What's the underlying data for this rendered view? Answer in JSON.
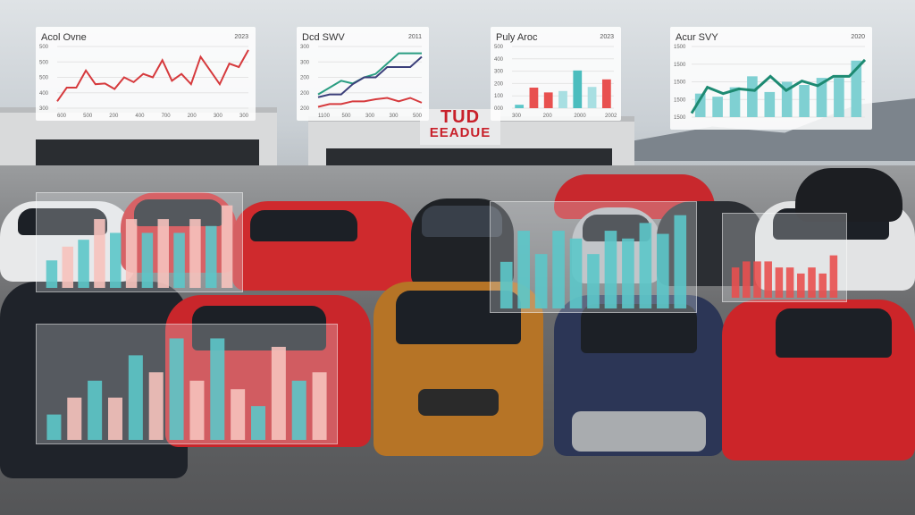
{
  "scene": {
    "sign_line1": "TUD",
    "sign_line2": "EEADUE",
    "colors": {
      "red": "#e8504f",
      "teal": "#5cc7c9",
      "pink": "#f6c2bd",
      "green": "#1d8a72",
      "navy": "#3b3f7a"
    }
  },
  "overlays": [
    {
      "title": "Acol Ovne",
      "corner": "2023",
      "type": "line",
      "yticks": [
        "500",
        "500",
        "500",
        "400",
        "300"
      ],
      "xticks": [
        "600",
        "500",
        "200",
        "400",
        "700",
        "200",
        "300",
        "300"
      ],
      "series": [
        {
          "color": "#d63a3d",
          "values": [
            1,
            3,
            3,
            5.5,
            3.5,
            3.6,
            2.8,
            4.5,
            3.8,
            5,
            4.5,
            7,
            4,
            5,
            3.5,
            7.5,
            5.5,
            3.5,
            6.5,
            6,
            8.5
          ]
        }
      ]
    },
    {
      "title": "Dcd SWV",
      "corner": "2011",
      "type": "line",
      "yticks": [
        "300",
        "300",
        "200",
        "200",
        "200"
      ],
      "xticks": [
        "1100",
        "500",
        "300",
        "300",
        "500"
      ],
      "series": [
        {
          "color": "#2a9d82",
          "values": [
            2,
            3,
            4,
            3.6,
            4.5,
            5,
            6.5,
            8,
            8,
            8
          ]
        },
        {
          "color": "#3b3f7a",
          "values": [
            1.6,
            2,
            2,
            3.5,
            4.5,
            4.5,
            6,
            6,
            6,
            7.5
          ]
        },
        {
          "color": "#d63a3d",
          "values": [
            0.2,
            0.6,
            0.6,
            1,
            1,
            1.3,
            1.5,
            1,
            1.5,
            0.8
          ]
        }
      ]
    },
    {
      "title": "Puly Aroc",
      "corner": "2023",
      "corner2": "2023",
      "type": "bar",
      "yticks": [
        "500",
        "400",
        "300",
        "200",
        "100",
        "000"
      ],
      "xticks": [
        "300",
        "200",
        "2000",
        "2002"
      ],
      "values": [
        0.5,
        3,
        2.3,
        2.5,
        5.5,
        3.1,
        4.2
      ],
      "colors": [
        "#5cc7c9",
        "#e8504f",
        "#e8504f",
        "#a8dfe2",
        "#4bbdbe",
        "#a8dfe2",
        "#e8504f"
      ]
    },
    {
      "title": "Acur SVY",
      "corner": "2020",
      "type": "bar-line",
      "yticks": [
        "1500",
        "1500",
        "1500",
        "1500",
        "1500"
      ],
      "values": [
        3,
        2.6,
        3.8,
        5.2,
        3.2,
        4.5,
        4.1,
        5,
        5,
        7.2
      ],
      "line": [
        0.5,
        3.8,
        3,
        3.6,
        3.4,
        5.2,
        3.4,
        4.6,
        4,
        5.2,
        5.2,
        7.3
      ]
    }
  ],
  "floating_bars": [
    {
      "values": [
        2,
        3,
        3.5,
        5,
        4,
        5,
        4,
        5,
        4,
        5,
        4.5,
        6
      ],
      "colors": [
        "teal",
        "pink"
      ]
    },
    {
      "values": [
        3,
        5,
        3.5,
        5,
        4.5,
        3.5,
        5,
        4.5,
        5.5,
        4.8,
        6
      ],
      "colors": [
        "teal"
      ]
    },
    {
      "values": [
        2.5,
        3,
        3,
        3,
        2.5,
        2.5,
        2,
        2.5,
        2,
        3.5
      ],
      "colors": [
        "red"
      ]
    },
    {
      "values": [
        1.5,
        2.5,
        3.5,
        2.5,
        5,
        4,
        6,
        3.5,
        6,
        3,
        2,
        5.5,
        3.5,
        4
      ],
      "colors": [
        "teal",
        "pink"
      ]
    }
  ]
}
